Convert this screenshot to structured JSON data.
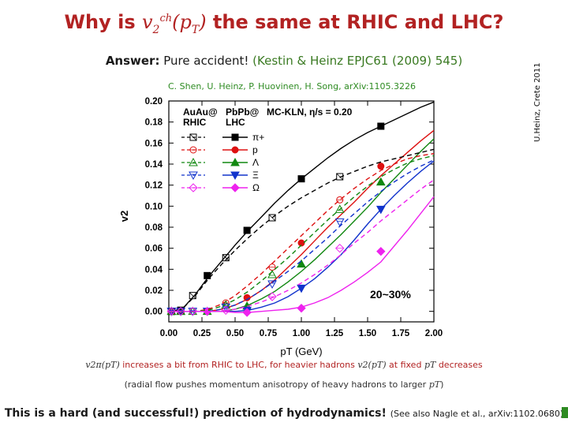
{
  "title": {
    "before": "Why is",
    "v": "v",
    "sub": "2",
    "sup": "ch",
    "arg": "(p",
    "arg_sub": "T",
    "arg_close": ")",
    "after": "the same at RHIC and LHC?"
  },
  "answer": {
    "label": "Answer:",
    "text": "Pure accident!",
    "ref": "(Kestin & Heinz EPJC61 (2009) 545)"
  },
  "credit": "C. Shen, U. Heinz, P. Huovinen, H. Song, arXiv:1105.3226",
  "side_label": "U.Heinz, Crete 2011",
  "text_line1": {
    "math1": "v2π(pT)",
    "t1": "increases a bit from RHIC to LHC, for heavier hadrons",
    "math2": "v2(pT)",
    "t2": "at fixed",
    "math3": "pT",
    "t3": "decreases"
  },
  "text_line2": {
    "t1": "(radial flow pushes momentum anisotropy of heavy hadrons to larger",
    "math": "pT",
    "t2": ")"
  },
  "bottom": {
    "text": "This is a hard (and successful!) prediction of hydrodynamics!",
    "ref": "(See also Nagle et al., arXiv:1102.0680)"
  },
  "chart_data": {
    "type": "line",
    "xlabel": "pT (GeV)",
    "ylabel": "v2",
    "xlim": [
      0.0,
      2.0
    ],
    "ylim": [
      -0.01,
      0.2
    ],
    "xticks": [
      "0.00",
      "0.25",
      "0.50",
      "0.75",
      "1.00",
      "1.25",
      "1.50",
      "1.75",
      "2.00"
    ],
    "yticks": [
      "0.00",
      "0.02",
      "0.04",
      "0.06",
      "0.08",
      "0.10",
      "0.12",
      "0.14",
      "0.16",
      "0.18",
      "0.20"
    ],
    "legend_col1": [
      "AuAu@",
      "RHIC"
    ],
    "legend_col2": [
      "PbPb@",
      "LHC"
    ],
    "model": "MC-KLN, η/s = 0.20",
    "centrality": "20~30%",
    "colors": {
      "pi": "#000000",
      "p": "#dd1111",
      "L": "#118811",
      "X": "#1133cc",
      "O": "#ee22ee"
    },
    "series": [
      {
        "name": "π+",
        "key": "pi",
        "experiment": "LHC",
        "style": "solid",
        "x": [
          0.0,
          0.1,
          0.2,
          0.3,
          0.4,
          0.5,
          0.6,
          0.7,
          0.8,
          0.9,
          1.0,
          1.1,
          1.2,
          1.3,
          1.4,
          1.5,
          1.6,
          1.7,
          1.8,
          1.9,
          2.0
        ],
        "y": [
          0.0,
          0.002,
          0.016,
          0.033,
          0.048,
          0.063,
          0.077,
          0.09,
          0.103,
          0.115,
          0.126,
          0.136,
          0.146,
          0.155,
          0.163,
          0.17,
          0.176,
          0.182,
          0.188,
          0.194,
          0.199
        ],
        "markers_x": [
          0.02,
          0.09,
          0.29,
          0.59,
          1.0,
          1.6
        ],
        "markers_y": [
          0.0,
          0.001,
          0.034,
          0.077,
          0.126,
          0.176
        ]
      },
      {
        "name": "p",
        "key": "p",
        "experiment": "LHC",
        "style": "solid",
        "x": [
          0.0,
          0.2,
          0.3,
          0.4,
          0.5,
          0.6,
          0.7,
          0.8,
          0.9,
          1.0,
          1.1,
          1.2,
          1.3,
          1.4,
          1.5,
          1.6,
          1.7,
          1.8,
          1.9,
          2.0
        ],
        "y": [
          0.0,
          0.0,
          0.0,
          0.002,
          0.006,
          0.012,
          0.02,
          0.03,
          0.042,
          0.054,
          0.067,
          0.08,
          0.092,
          0.104,
          0.117,
          0.129,
          0.14,
          0.151,
          0.162,
          0.172
        ],
        "markers_x": [
          0.02,
          0.09,
          0.29,
          0.59,
          1.0,
          1.6
        ],
        "markers_y": [
          0.0,
          0.0,
          0.0,
          0.013,
          0.065,
          0.138
        ]
      },
      {
        "name": "Λ",
        "key": "L",
        "experiment": "LHC",
        "style": "solid",
        "x": [
          0.0,
          0.2,
          0.3,
          0.4,
          0.5,
          0.6,
          0.7,
          0.8,
          0.9,
          1.0,
          1.1,
          1.2,
          1.3,
          1.4,
          1.5,
          1.6,
          1.7,
          1.8,
          1.9,
          2.0
        ],
        "y": [
          0.0,
          0.0,
          0.0,
          0.0,
          0.002,
          0.006,
          0.012,
          0.019,
          0.028,
          0.038,
          0.049,
          0.061,
          0.073,
          0.086,
          0.099,
          0.113,
          0.126,
          0.139,
          0.152,
          0.164
        ],
        "markers_x": [
          0.02,
          0.09,
          0.29,
          0.59,
          1.0,
          1.6
        ],
        "markers_y": [
          0.0,
          0.0,
          0.0,
          0.005,
          0.045,
          0.123
        ]
      },
      {
        "name": "Ξ",
        "key": "X",
        "experiment": "LHC",
        "style": "solid",
        "x": [
          0.0,
          0.3,
          0.4,
          0.5,
          0.6,
          0.7,
          0.8,
          0.9,
          1.0,
          1.1,
          1.2,
          1.3,
          1.4,
          1.5,
          1.6,
          1.7,
          1.8,
          1.9,
          2.0
        ],
        "y": [
          0.0,
          0.0,
          0.0,
          0.0,
          0.001,
          0.004,
          0.008,
          0.014,
          0.022,
          0.031,
          0.042,
          0.054,
          0.068,
          0.083,
          0.097,
          0.11,
          0.122,
          0.133,
          0.143
        ],
        "markers_x": [
          0.02,
          0.09,
          0.29,
          0.59,
          1.0,
          1.6
        ],
        "markers_y": [
          0.0,
          0.0,
          0.0,
          0.001,
          0.022,
          0.097
        ]
      },
      {
        "name": "Ω",
        "key": "O",
        "experiment": "LHC",
        "style": "solid",
        "x": [
          0.0,
          0.4,
          0.5,
          0.6,
          0.7,
          0.8,
          0.9,
          1.0,
          1.1,
          1.2,
          1.3,
          1.4,
          1.5,
          1.6,
          1.7,
          1.8,
          1.9,
          2.0
        ],
        "y": [
          0.0,
          0.0,
          -0.001,
          -0.001,
          0.0,
          0.001,
          0.002,
          0.004,
          0.008,
          0.013,
          0.02,
          0.028,
          0.037,
          0.047,
          0.062,
          0.077,
          0.093,
          0.109
        ],
        "markers_x": [
          0.02,
          0.09,
          0.29,
          0.59,
          1.0,
          1.6
        ],
        "markers_y": [
          0.0,
          0.0,
          0.0,
          -0.001,
          0.003,
          0.057
        ]
      },
      {
        "name": "π+",
        "key": "pi",
        "experiment": "RHIC",
        "style": "dashed",
        "x": [
          0.0,
          0.1,
          0.2,
          0.3,
          0.4,
          0.5,
          0.6,
          0.7,
          0.8,
          0.9,
          1.0,
          1.1,
          1.2,
          1.3,
          1.4,
          1.5,
          1.6,
          1.7,
          1.8,
          1.9,
          2.0
        ],
        "y": [
          0.0,
          0.002,
          0.015,
          0.031,
          0.045,
          0.058,
          0.07,
          0.081,
          0.091,
          0.1,
          0.108,
          0.115,
          0.122,
          0.128,
          0.133,
          0.138,
          0.142,
          0.145,
          0.148,
          0.151,
          0.154
        ],
        "markers_x": [
          0.02,
          0.09,
          0.18,
          0.43,
          0.78,
          1.29
        ],
        "markers_y": [
          0.0,
          0.001,
          0.015,
          0.051,
          0.089,
          0.128
        ]
      },
      {
        "name": "p",
        "key": "p",
        "experiment": "RHIC",
        "style": "dashed",
        "x": [
          0.0,
          0.2,
          0.3,
          0.4,
          0.5,
          0.6,
          0.7,
          0.8,
          0.9,
          1.0,
          1.1,
          1.2,
          1.3,
          1.4,
          1.5,
          1.6,
          1.7,
          1.8,
          1.9,
          2.0
        ],
        "y": [
          0.0,
          0.0,
          0.002,
          0.007,
          0.015,
          0.025,
          0.036,
          0.048,
          0.06,
          0.072,
          0.084,
          0.096,
          0.107,
          0.117,
          0.126,
          0.134,
          0.14,
          0.145,
          0.148,
          0.15
        ],
        "markers_x": [
          0.02,
          0.09,
          0.18,
          0.43,
          0.78,
          1.29
        ],
        "markers_y": [
          0.0,
          0.0,
          0.0,
          0.008,
          0.042,
          0.106
        ]
      },
      {
        "name": "Λ",
        "key": "L",
        "experiment": "RHIC",
        "style": "dashed",
        "x": [
          0.0,
          0.2,
          0.3,
          0.4,
          0.5,
          0.6,
          0.7,
          0.8,
          0.9,
          1.0,
          1.1,
          1.2,
          1.3,
          1.4,
          1.5,
          1.6,
          1.7,
          1.8,
          1.9,
          2.0
        ],
        "y": [
          0.0,
          0.0,
          0.001,
          0.005,
          0.011,
          0.019,
          0.029,
          0.04,
          0.051,
          0.063,
          0.075,
          0.087,
          0.098,
          0.109,
          0.119,
          0.128,
          0.135,
          0.141,
          0.145,
          0.148
        ],
        "markers_x": [
          0.02,
          0.09,
          0.18,
          0.43,
          0.78,
          1.29
        ],
        "markers_y": [
          0.0,
          0.0,
          0.0,
          0.006,
          0.035,
          0.097
        ]
      },
      {
        "name": "Ξ",
        "key": "X",
        "experiment": "RHIC",
        "style": "dashed",
        "x": [
          0.0,
          0.3,
          0.4,
          0.5,
          0.6,
          0.7,
          0.8,
          0.9,
          1.0,
          1.1,
          1.2,
          1.3,
          1.4,
          1.5,
          1.6,
          1.7,
          1.8,
          1.9,
          2.0
        ],
        "y": [
          0.0,
          0.0,
          0.002,
          0.006,
          0.012,
          0.02,
          0.029,
          0.038,
          0.048,
          0.059,
          0.07,
          0.082,
          0.093,
          0.104,
          0.114,
          0.123,
          0.131,
          0.138,
          0.144
        ],
        "markers_x": [
          0.02,
          0.09,
          0.18,
          0.43,
          0.78,
          1.29
        ],
        "markers_y": [
          0.0,
          0.0,
          0.0,
          0.004,
          0.026,
          0.085
        ]
      },
      {
        "name": "Ω",
        "key": "O",
        "experiment": "RHIC",
        "style": "dashed",
        "x": [
          0.0,
          0.4,
          0.5,
          0.6,
          0.7,
          0.8,
          0.9,
          1.0,
          1.1,
          1.2,
          1.3,
          1.4,
          1.5,
          1.6,
          1.7,
          1.8,
          1.9,
          2.0
        ],
        "y": [
          0.0,
          0.0,
          0.002,
          0.005,
          0.009,
          0.014,
          0.02,
          0.027,
          0.035,
          0.044,
          0.054,
          0.065,
          0.075,
          0.086,
          0.096,
          0.106,
          0.116,
          0.125
        ],
        "markers_x": [
          0.02,
          0.09,
          0.18,
          0.43,
          0.78,
          1.29
        ],
        "markers_y": [
          0.0,
          0.0,
          0.0,
          0.001,
          0.014,
          0.06
        ]
      }
    ]
  }
}
